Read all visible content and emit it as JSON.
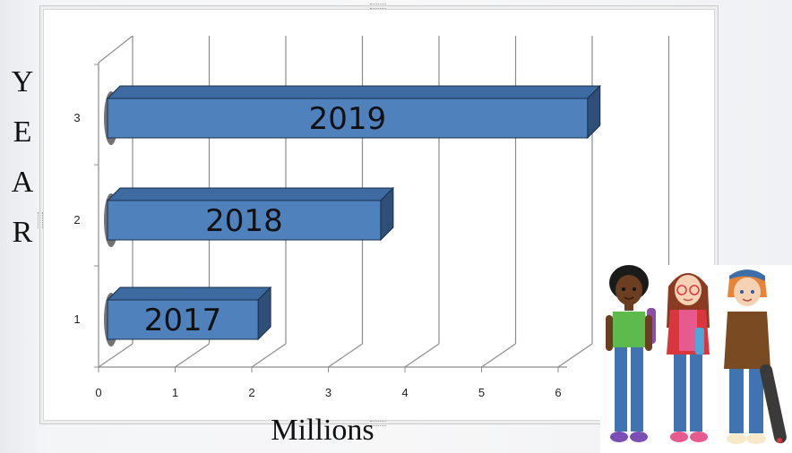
{
  "chart_data": {
    "type": "bar",
    "orientation": "horizontal",
    "style": "3d",
    "categories": [
      "1",
      "2",
      "3"
    ],
    "values": [
      2.2,
      3.8,
      6.5
    ],
    "data_labels": [
      "2017",
      "2018",
      "2019"
    ],
    "xlabel": "Millions",
    "ylabel_letters": [
      "Y",
      "E",
      "A",
      "R"
    ],
    "xlim": [
      0,
      7
    ],
    "x_ticks": [
      "0",
      "1",
      "2",
      "3",
      "4",
      "5",
      "6"
    ],
    "grid": "vertical",
    "bar_color": "#4f81bd",
    "bar_top_color": "#3d6aa0",
    "bar_side_color": "#2f4f78"
  },
  "illustration": {
    "name": "three cartoon teenagers",
    "colors": {
      "skin_dark": "#6b3d21",
      "skin_light": "#f6d2b5",
      "shirt_green": "#5dbb4e",
      "shirt_pink": "#e7598f",
      "jacket_red": "#d9363e",
      "shirt_brown": "#7a4a22",
      "jeans": "#3f74b0",
      "backpack_purple": "#8b4fa5",
      "cap_blue": "#3c6ea8"
    }
  }
}
